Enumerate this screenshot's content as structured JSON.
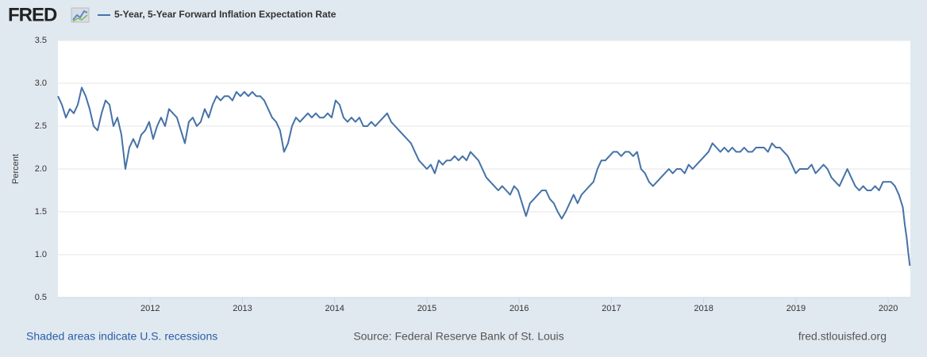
{
  "chart_data": {
    "type": "line",
    "logo": "FRED",
    "ylabel": "Percent",
    "footer_left": "Shaded areas indicate U.S. recessions",
    "footer_center": "Source: Federal Reserve Bank of St. Louis",
    "footer_right": "fred.stlouisfed.org",
    "xlim": [
      2011,
      2020.24
    ],
    "xticks": [
      2012,
      2013,
      2014,
      2015,
      2016,
      2017,
      2018,
      2019,
      2020
    ],
    "ylim": [
      0.5,
      3.5
    ],
    "yticks": [
      0.5,
      {
        "value": 1,
        "label": "1.0"
      },
      1.5,
      {
        "value": 2,
        "label": "2.0"
      },
      2.5,
      {
        "value": 3,
        "label": "3.0"
      },
      3.5
    ],
    "grid": true,
    "x": [
      2011,
      2011.043,
      2011.086,
      2011.129,
      2011.172,
      2011.215,
      2011.258,
      2011.301,
      2011.344,
      2011.387,
      2011.43,
      2011.473,
      2011.516,
      2011.559,
      2011.602,
      2011.645,
      2011.688,
      2011.731,
      2011.774,
      2011.817,
      2011.86,
      2011.903,
      2011.946,
      2011.989,
      2012.032,
      2012.075,
      2012.118,
      2012.161,
      2012.204,
      2012.247,
      2012.29,
      2012.333,
      2012.376,
      2012.419,
      2012.462,
      2012.505,
      2012.548,
      2012.591,
      2012.634,
      2012.677,
      2012.72,
      2012.763,
      2012.806,
      2012.849,
      2012.892,
      2012.935,
      2012.978,
      2013.021,
      2013.064,
      2013.107,
      2013.15,
      2013.193,
      2013.236,
      2013.279,
      2013.322,
      2013.365,
      2013.408,
      2013.451,
      2013.494,
      2013.537,
      2013.58,
      2013.623,
      2013.666,
      2013.709,
      2013.752,
      2013.795,
      2013.838,
      2013.881,
      2013.924,
      2013.967,
      2014.01,
      2014.053,
      2014.096,
      2014.139,
      2014.182,
      2014.225,
      2014.268,
      2014.311,
      2014.354,
      2014.397,
      2014.44,
      2014.483,
      2014.526,
      2014.569,
      2014.612,
      2014.655,
      2014.698,
      2014.741,
      2014.784,
      2014.827,
      2014.87,
      2014.913,
      2014.956,
      2014.999,
      2015.042,
      2015.085,
      2015.128,
      2015.171,
      2015.214,
      2015.257,
      2015.3,
      2015.343,
      2015.386,
      2015.429,
      2015.472,
      2015.515,
      2015.558,
      2015.601,
      2015.644,
      2015.687,
      2015.73,
      2015.773,
      2015.816,
      2015.859,
      2015.902,
      2015.945,
      2015.988,
      2016.031,
      2016.074,
      2016.117,
      2016.16,
      2016.203,
      2016.246,
      2016.289,
      2016.332,
      2016.375,
      2016.418,
      2016.461,
      2016.504,
      2016.547,
      2016.59,
      2016.633,
      2016.676,
      2016.719,
      2016.762,
      2016.805,
      2016.848,
      2016.891,
      2016.934,
      2016.977,
      2017.02,
      2017.063,
      2017.106,
      2017.149,
      2017.192,
      2017.235,
      2017.278,
      2017.321,
      2017.364,
      2017.407,
      2017.45,
      2017.493,
      2017.536,
      2017.579,
      2017.622,
      2017.665,
      2017.708,
      2017.751,
      2017.794,
      2017.837,
      2017.88,
      2017.923,
      2017.966,
      2018.009,
      2018.052,
      2018.095,
      2018.138,
      2018.181,
      2018.224,
      2018.267,
      2018.31,
      2018.353,
      2018.396,
      2018.439,
      2018.482,
      2018.525,
      2018.568,
      2018.611,
      2018.654,
      2018.697,
      2018.74,
      2018.783,
      2018.826,
      2018.869,
      2018.912,
      2018.955,
      2018.998,
      2019.041,
      2019.084,
      2019.127,
      2019.17,
      2019.213,
      2019.256,
      2019.299,
      2019.342,
      2019.385,
      2019.428,
      2019.471,
      2019.514,
      2019.557,
      2019.6,
      2019.643,
      2019.686,
      2019.729,
      2019.772,
      2019.815,
      2019.858,
      2019.901,
      2019.944,
      2019.987,
      2020.03,
      2020.073,
      2020.116,
      2020.159,
      2020.18,
      2020.2,
      2020.22,
      2020.235
    ],
    "series": [
      {
        "name": "5-Year, 5-Year Forward Inflation Expectation Rate",
        "color": "#4572a7",
        "values": [
          2.85,
          2.75,
          2.6,
          2.7,
          2.65,
          2.75,
          2.95,
          2.85,
          2.7,
          2.5,
          2.45,
          2.65,
          2.8,
          2.75,
          2.5,
          2.6,
          2.4,
          2.0,
          2.25,
          2.35,
          2.25,
          2.4,
          2.45,
          2.55,
          2.35,
          2.5,
          2.6,
          2.5,
          2.7,
          2.65,
          2.6,
          2.45,
          2.3,
          2.55,
          2.6,
          2.5,
          2.55,
          2.7,
          2.6,
          2.75,
          2.85,
          2.8,
          2.85,
          2.85,
          2.8,
          2.9,
          2.85,
          2.9,
          2.85,
          2.9,
          2.85,
          2.85,
          2.8,
          2.7,
          2.6,
          2.55,
          2.45,
          2.2,
          2.3,
          2.5,
          2.6,
          2.55,
          2.6,
          2.65,
          2.6,
          2.65,
          2.6,
          2.6,
          2.65,
          2.6,
          2.8,
          2.75,
          2.6,
          2.55,
          2.6,
          2.55,
          2.6,
          2.5,
          2.5,
          2.55,
          2.5,
          2.55,
          2.6,
          2.65,
          2.55,
          2.5,
          2.45,
          2.4,
          2.35,
          2.3,
          2.2,
          2.1,
          2.05,
          2.0,
          2.05,
          1.95,
          2.1,
          2.05,
          2.1,
          2.1,
          2.15,
          2.1,
          2.15,
          2.1,
          2.2,
          2.15,
          2.1,
          2.0,
          1.9,
          1.85,
          1.8,
          1.75,
          1.8,
          1.75,
          1.7,
          1.8,
          1.75,
          1.6,
          1.45,
          1.6,
          1.65,
          1.7,
          1.75,
          1.75,
          1.65,
          1.6,
          1.5,
          1.42,
          1.5,
          1.6,
          1.7,
          1.6,
          1.7,
          1.75,
          1.8,
          1.85,
          2.0,
          2.1,
          2.1,
          2.15,
          2.2,
          2.2,
          2.15,
          2.2,
          2.2,
          2.15,
          2.2,
          2.0,
          1.95,
          1.85,
          1.8,
          1.85,
          1.9,
          1.95,
          2.0,
          1.95,
          2.0,
          2.0,
          1.95,
          2.05,
          2.0,
          2.05,
          2.1,
          2.15,
          2.2,
          2.3,
          2.25,
          2.2,
          2.25,
          2.2,
          2.25,
          2.2,
          2.2,
          2.25,
          2.2,
          2.2,
          2.25,
          2.25,
          2.25,
          2.2,
          2.3,
          2.25,
          2.25,
          2.2,
          2.15,
          2.05,
          1.95,
          2.0,
          2.0,
          2.0,
          2.05,
          1.95,
          2.0,
          2.05,
          2.0,
          1.9,
          1.85,
          1.8,
          1.9,
          2.0,
          1.9,
          1.8,
          1.75,
          1.8,
          1.75,
          1.75,
          1.8,
          1.75,
          1.85,
          1.85,
          1.85,
          1.8,
          1.7,
          1.55,
          1.35,
          1.2,
          1.0,
          0.87
        ]
      }
    ]
  }
}
